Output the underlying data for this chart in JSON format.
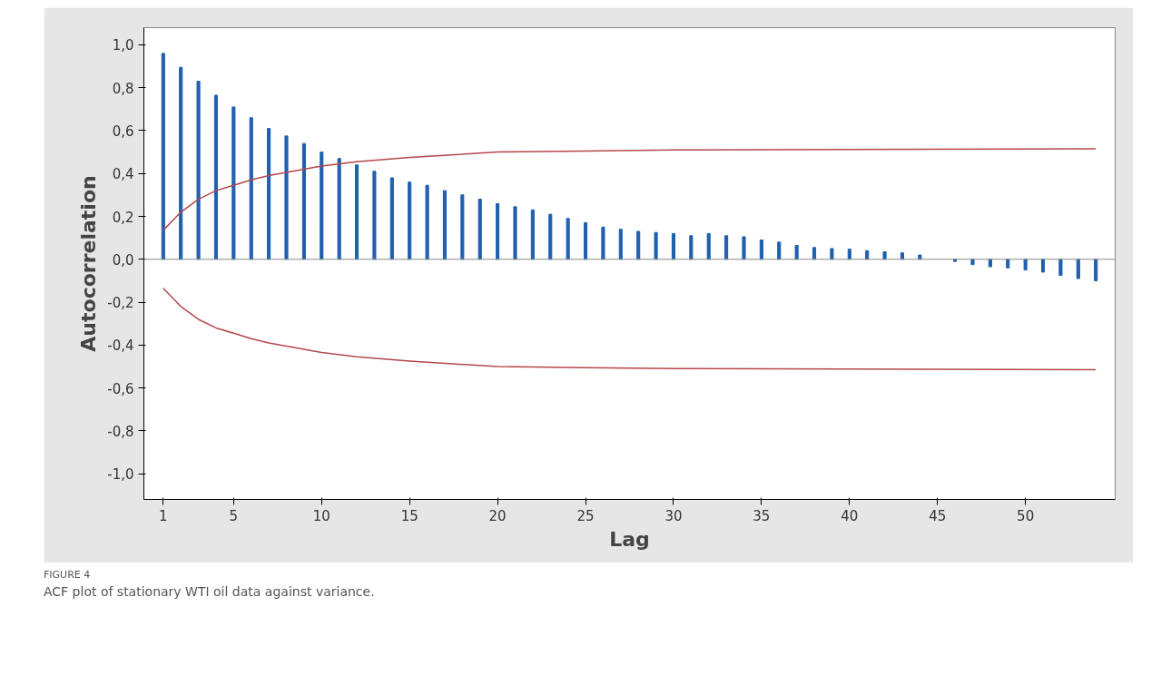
{
  "chart_data": {
    "type": "bar",
    "xlabel": "Lag",
    "ylabel": "Autocorrelation",
    "x": [
      1,
      2,
      3,
      4,
      5,
      6,
      7,
      8,
      9,
      10,
      11,
      12,
      13,
      14,
      15,
      16,
      17,
      18,
      19,
      20,
      21,
      22,
      23,
      24,
      25,
      26,
      27,
      28,
      29,
      30,
      31,
      32,
      33,
      34,
      35,
      36,
      37,
      38,
      39,
      40,
      41,
      42,
      43,
      44,
      45,
      46,
      47,
      48,
      49,
      50,
      51,
      52,
      53,
      54
    ],
    "series": [
      {
        "color": "#1f5fae",
        "values": [
          0.96,
          0.895,
          0.83,
          0.765,
          0.71,
          0.66,
          0.61,
          0.575,
          0.54,
          0.5,
          0.47,
          0.44,
          0.41,
          0.38,
          0.36,
          0.345,
          0.32,
          0.3,
          0.28,
          0.26,
          0.245,
          0.23,
          0.21,
          0.19,
          0.17,
          0.15,
          0.14,
          0.13,
          0.125,
          0.12,
          0.11,
          0.12,
          0.11,
          0.105,
          0.09,
          0.08,
          0.065,
          0.055,
          0.05,
          0.047,
          0.04,
          0.035,
          0.03,
          0.02,
          null,
          -0.01,
          -0.025,
          -0.035,
          -0.04,
          -0.05,
          -0.06,
          -0.075,
          -0.09,
          -0.1
        ]
      },
      {
        "type": "line",
        "color": "#b5474a",
        "x": [
          1,
          2,
          3,
          4,
          5,
          6,
          7,
          8,
          10,
          12,
          15,
          20,
          25,
          30,
          54
        ],
        "values": [
          0.135,
          0.22,
          0.28,
          0.32,
          0.345,
          0.37,
          0.39,
          0.405,
          0.435,
          0.455,
          0.475,
          0.5,
          0.505,
          0.51,
          0.515
        ]
      },
      {
        "type": "line",
        "color": "#b5474a",
        "x": [
          1,
          2,
          3,
          4,
          5,
          6,
          7,
          8,
          10,
          12,
          15,
          20,
          25,
          30,
          54
        ],
        "values": [
          -0.135,
          -0.22,
          -0.28,
          -0.32,
          -0.345,
          -0.37,
          -0.39,
          -0.405,
          -0.435,
          -0.455,
          -0.475,
          -0.5,
          -0.505,
          -0.51,
          -0.515
        ]
      }
    ],
    "xlim": [
      -0.1,
      55.1
    ],
    "ylim": [
      -1.12,
      1.08
    ],
    "xticks": [
      1,
      5,
      10,
      15,
      20,
      25,
      30,
      35,
      40,
      45,
      50
    ],
    "yticks": [
      {
        "value": -1.0,
        "label": "-1,0"
      },
      {
        "value": -0.8,
        "label": "-0,8"
      },
      {
        "value": -0.6,
        "label": "-0,6"
      },
      {
        "value": -0.4,
        "label": "-0,4"
      },
      {
        "value": -0.2,
        "label": "-0,2"
      },
      {
        "value": 0.0,
        "label": "0,0"
      },
      {
        "value": 0.2,
        "label": "0,2"
      },
      {
        "value": 0.4,
        "label": "0,4"
      },
      {
        "value": 0.6,
        "label": "0,6"
      },
      {
        "value": 0.8,
        "label": "0,8"
      },
      {
        "value": 1.0,
        "label": "1,0"
      }
    ],
    "ref_lines": [
      {
        "axis": "y",
        "value": 0,
        "color": "#888888"
      }
    ],
    "grid": false,
    "annotations": [
      "FIGURE 4",
      "ACF plot of stationary WTI oil data against variance."
    ]
  }
}
